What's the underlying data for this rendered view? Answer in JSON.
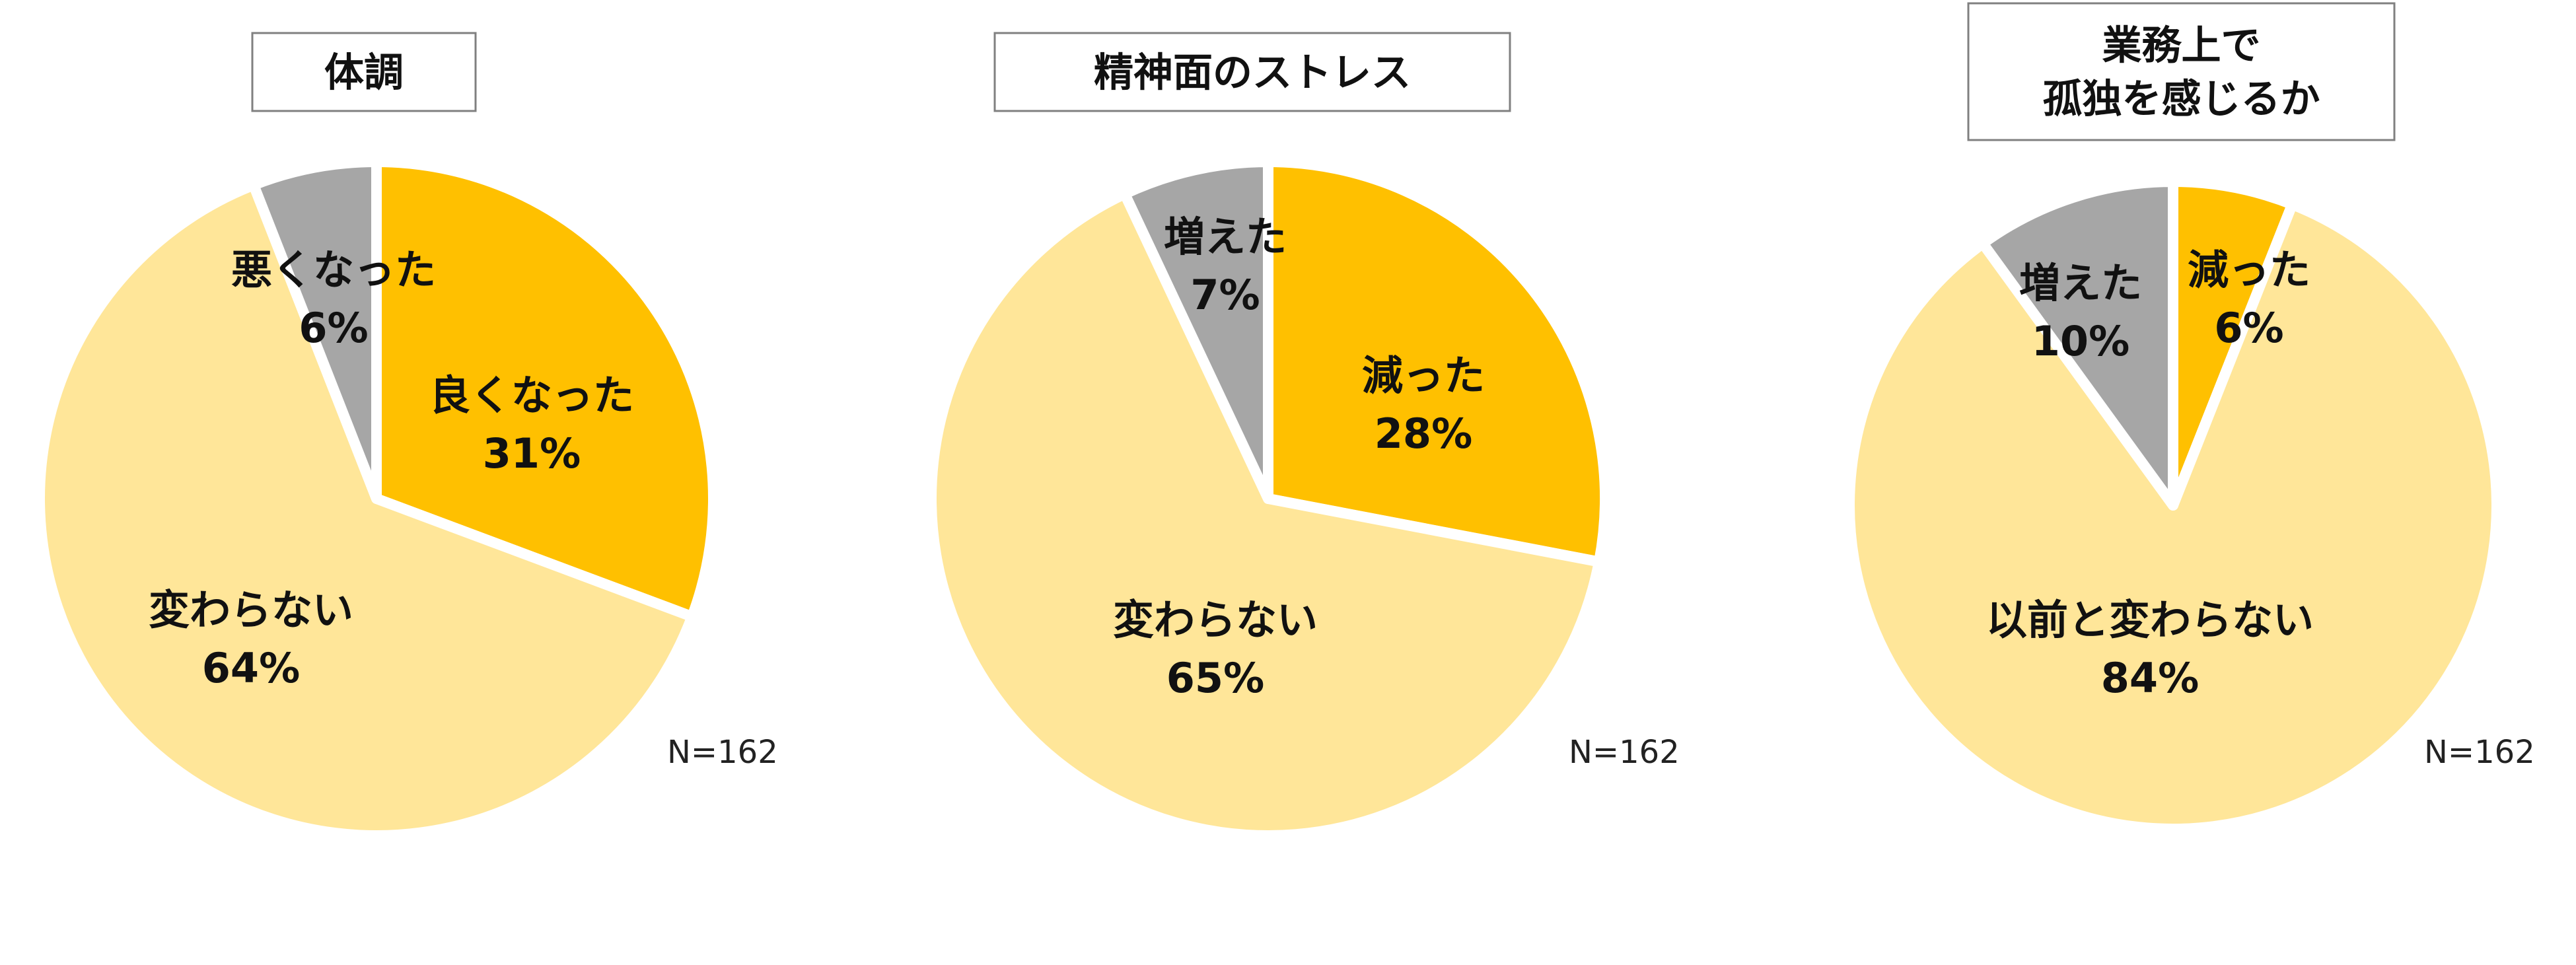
{
  "chart_data": [
    {
      "type": "pie",
      "title": "体調",
      "n_label": "N=162",
      "slices": [
        {
          "name": "良くなった",
          "value": 31,
          "value_label": "31%",
          "color": "#FFC000"
        },
        {
          "name": "変わらない",
          "value": 64,
          "value_label": "64%",
          "color": "#FFE699"
        },
        {
          "name": "悪くなった",
          "value": 6,
          "value_label": "6%",
          "color": "#A6A6A6"
        }
      ]
    },
    {
      "type": "pie",
      "title": "精神面のストレス",
      "n_label": "N=162",
      "slices": [
        {
          "name": "減った",
          "value": 28,
          "value_label": "28%",
          "color": "#FFC000"
        },
        {
          "name": "変わらない",
          "value": 65,
          "value_label": "65%",
          "color": "#FFE699"
        },
        {
          "name": "増えた",
          "value": 7,
          "value_label": "7%",
          "color": "#A6A6A6"
        }
      ]
    },
    {
      "type": "pie",
      "title": [
        "業務上で",
        "孤独を感じるか"
      ],
      "n_label": "N=162",
      "slices": [
        {
          "name": "減った",
          "value": 6,
          "value_label": "6%",
          "color": "#FFC000"
        },
        {
          "name": "以前と変わらない",
          "value": 84,
          "value_label": "84%",
          "color": "#FFE699"
        },
        {
          "name": "増えた",
          "value": 10,
          "value_label": "10%",
          "color": "#A6A6A6"
        }
      ]
    }
  ]
}
